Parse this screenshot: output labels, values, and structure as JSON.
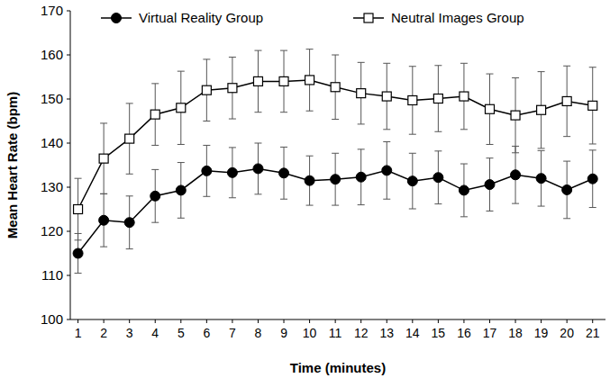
{
  "chart_data": {
    "type": "line",
    "x_label": "Time (minutes)",
    "y_label": "Mean Heart Rate (bpm)",
    "x": [
      1,
      2,
      3,
      4,
      5,
      6,
      7,
      8,
      9,
      10,
      11,
      12,
      13,
      14,
      15,
      16,
      17,
      18,
      19,
      20,
      21
    ],
    "xlim": [
      0.7,
      21.5
    ],
    "xticks": [
      1,
      2,
      3,
      4,
      5,
      6,
      7,
      8,
      9,
      10,
      11,
      12,
      13,
      14,
      15,
      16,
      17,
      18,
      19,
      20,
      21
    ],
    "ylim": [
      100,
      170
    ],
    "yticks": [
      100,
      110,
      120,
      130,
      140,
      150,
      160,
      170
    ],
    "grid": false,
    "legend": "top",
    "series": [
      {
        "name": "Virtual Reality Group",
        "color": "#000000",
        "marker": "circle",
        "values": [
          115,
          122.5,
          122,
          128,
          129.3,
          133.7,
          133.3,
          134.2,
          133.2,
          131.5,
          131.8,
          132.3,
          133.8,
          131.4,
          132.2,
          129.3,
          130.6,
          132.8,
          132,
          129.4,
          131.9
        ],
        "errors": [
          4.5,
          6,
          6,
          6,
          6.3,
          5.8,
          5.7,
          5.8,
          5.9,
          5.6,
          5.9,
          6.3,
          6.5,
          6.3,
          6,
          6,
          6,
          6.5,
          6.3,
          6.5,
          6.5
        ]
      },
      {
        "name": "Neutral Images Group",
        "color": "#000000",
        "marker": "square",
        "values": [
          125,
          136.5,
          141,
          146.5,
          148,
          152,
          152.5,
          154,
          154,
          154.3,
          152.7,
          151.3,
          150.6,
          149.7,
          150.1,
          150.6,
          147.7,
          146.3,
          147.5,
          149.5,
          148.5
        ],
        "errors": [
          7,
          8,
          8,
          7,
          8.3,
          7,
          7,
          7,
          7,
          7,
          7.3,
          7,
          7.5,
          7.7,
          7.5,
          7.5,
          8,
          8.5,
          8.7,
          8,
          8.7
        ]
      }
    ]
  }
}
